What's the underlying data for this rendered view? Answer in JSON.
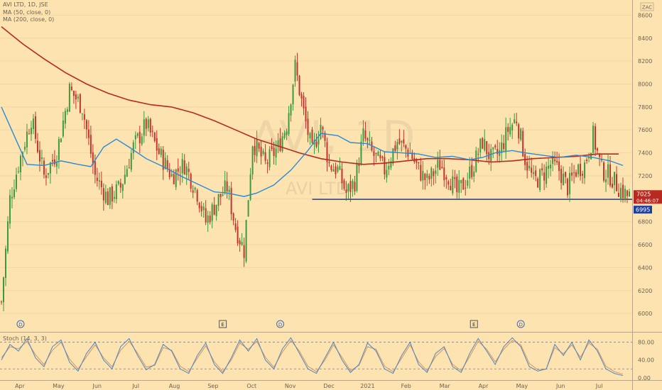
{
  "legend": {
    "symbol_line": "AVI LTD, 1D, JSE",
    "ma50_line": "MA (50, close, 0)",
    "ma200_line": "MA (200, close, 0)"
  },
  "watermark": {
    "ticker": "AVI, 1D",
    "name": "AVI LTD"
  },
  "currency_badge": "ZAC",
  "stoch_label": "Stoch (14, 3, 3)",
  "colors": {
    "background": "#fde3b0",
    "bull": "#3d9a3f",
    "bear": "#c3342e",
    "ma50": "#2a8ad4",
    "ma200": "#b8291f",
    "support": "#1e3f9c",
    "k_line": "#4a86c8",
    "d_line": "#d8935f"
  },
  "chart_data": [
    {
      "type": "candlestick",
      "title": "AVI LTD, 1D, JSE",
      "x_ticks": [
        "Apr",
        "May",
        "Jun",
        "Jul",
        "Aug",
        "Sep",
        "Oct",
        "Nov",
        "Dec",
        "2021",
        "Feb",
        "Mar",
        "Apr",
        "May",
        "Jun",
        "Jul"
      ],
      "y_ticks": [
        6000,
        6200,
        6400,
        6600,
        6800,
        7000,
        7200,
        7400,
        7600,
        7800,
        8000,
        8200,
        8400,
        8600
      ],
      "ylim": [
        5840,
        8720
      ],
      "series_path": [
        [
          0,
          6100
        ],
        [
          4,
          7000
        ],
        [
          8,
          7300
        ],
        [
          14,
          7700
        ],
        [
          20,
          7200
        ],
        [
          26,
          7400
        ],
        [
          32,
          7950
        ],
        [
          38,
          7800
        ],
        [
          44,
          7200
        ],
        [
          50,
          7000
        ],
        [
          56,
          7100
        ],
        [
          62,
          7450
        ],
        [
          68,
          7650
        ],
        [
          74,
          7400
        ],
        [
          80,
          7200
        ],
        [
          86,
          7300
        ],
        [
          92,
          7050
        ],
        [
          96,
          6800
        ],
        [
          102,
          7000
        ],
        [
          106,
          7100
        ],
        [
          110,
          6750
        ],
        [
          114,
          6550
        ],
        [
          118,
          7500
        ],
        [
          124,
          7300
        ],
        [
          130,
          7450
        ],
        [
          134,
          7650
        ],
        [
          138,
          8150
        ],
        [
          142,
          7750
        ],
        [
          146,
          7400
        ],
        [
          150,
          7650
        ],
        [
          154,
          7300
        ],
        [
          158,
          7250
        ],
        [
          162,
          7050
        ],
        [
          166,
          7150
        ],
        [
          170,
          7550
        ],
        [
          174,
          7400
        ],
        [
          180,
          7250
        ],
        [
          186,
          7500
        ],
        [
          192,
          7400
        ],
        [
          196,
          7250
        ],
        [
          200,
          7150
        ],
        [
          206,
          7300
        ],
        [
          210,
          7200
        ],
        [
          214,
          7050
        ],
        [
          218,
          7150
        ],
        [
          222,
          7300
        ],
        [
          226,
          7500
        ],
        [
          230,
          7350
        ],
        [
          234,
          7400
        ],
        [
          238,
          7600
        ],
        [
          242,
          7700
        ],
        [
          246,
          7350
        ],
        [
          250,
          7150
        ],
        [
          254,
          7200
        ],
        [
          258,
          7300
        ],
        [
          262,
          7250
        ],
        [
          266,
          7100
        ],
        [
          270,
          7250
        ],
        [
          274,
          7300
        ],
        [
          278,
          7550
        ],
        [
          282,
          7250
        ],
        [
          286,
          7200
        ],
        [
          290,
          7100
        ],
        [
          294,
          7025
        ]
      ],
      "ma50": [
        [
          0,
          7800
        ],
        [
          6,
          7550
        ],
        [
          12,
          7300
        ],
        [
          20,
          7290
        ],
        [
          28,
          7330
        ],
        [
          36,
          7300
        ],
        [
          42,
          7280
        ],
        [
          48,
          7450
        ],
        [
          54,
          7520
        ],
        [
          60,
          7450
        ],
        [
          68,
          7350
        ],
        [
          76,
          7280
        ],
        [
          84,
          7200
        ],
        [
          92,
          7130
        ],
        [
          100,
          7060
        ],
        [
          106,
          7050
        ],
        [
          114,
          7020
        ],
        [
          120,
          7050
        ],
        [
          128,
          7120
        ],
        [
          136,
          7250
        ],
        [
          144,
          7420
        ],
        [
          150,
          7570
        ],
        [
          158,
          7550
        ],
        [
          164,
          7490
        ],
        [
          172,
          7480
        ],
        [
          180,
          7410
        ],
        [
          188,
          7400
        ],
        [
          196,
          7390
        ],
        [
          204,
          7360
        ],
        [
          212,
          7370
        ],
        [
          220,
          7340
        ],
        [
          226,
          7360
        ],
        [
          232,
          7400
        ],
        [
          240,
          7420
        ],
        [
          246,
          7400
        ],
        [
          254,
          7380
        ],
        [
          262,
          7360
        ],
        [
          270,
          7380
        ],
        [
          278,
          7360
        ],
        [
          286,
          7330
        ],
        [
          292,
          7290
        ]
      ],
      "ma200": [
        [
          0,
          8500
        ],
        [
          10,
          8350
        ],
        [
          20,
          8220
        ],
        [
          30,
          8100
        ],
        [
          40,
          8000
        ],
        [
          50,
          7920
        ],
        [
          60,
          7860
        ],
        [
          70,
          7820
        ],
        [
          80,
          7800
        ],
        [
          90,
          7750
        ],
        [
          100,
          7680
        ],
        [
          110,
          7600
        ],
        [
          120,
          7520
        ],
        [
          130,
          7460
        ],
        [
          140,
          7400
        ],
        [
          150,
          7350
        ],
        [
          160,
          7320
        ],
        [
          170,
          7300
        ],
        [
          180,
          7310
        ],
        [
          190,
          7330
        ],
        [
          200,
          7350
        ],
        [
          210,
          7350
        ],
        [
          220,
          7340
        ],
        [
          230,
          7320
        ],
        [
          240,
          7330
        ],
        [
          250,
          7350
        ],
        [
          260,
          7360
        ],
        [
          270,
          7370
        ],
        [
          280,
          7390
        ],
        [
          290,
          7390
        ]
      ],
      "support_level": 6995,
      "price_labels": {
        "last": "7025",
        "countdown": "04:46:07",
        "support": "6995"
      },
      "events": [
        {
          "label": "D",
          "x_index": 9
        },
        {
          "label": "E",
          "x_index": 104
        },
        {
          "label": "D",
          "x_index": 131
        },
        {
          "label": "E",
          "x_index": 222
        },
        {
          "label": "D",
          "x_index": 244
        }
      ]
    },
    {
      "type": "line",
      "title": "Stoch (14, 3, 3)",
      "y_ticks": [
        0,
        40,
        80
      ],
      "y_tick_labels": [
        "0.00",
        "40.00",
        "80.00"
      ],
      "ylim": [
        -5,
        100
      ],
      "bands": [
        20,
        80
      ],
      "k_path": [
        [
          0,
          40
        ],
        [
          4,
          75
        ],
        [
          8,
          60
        ],
        [
          12,
          88
        ],
        [
          16,
          45
        ],
        [
          20,
          25
        ],
        [
          24,
          70
        ],
        [
          28,
          85
        ],
        [
          32,
          35
        ],
        [
          36,
          15
        ],
        [
          40,
          55
        ],
        [
          44,
          80
        ],
        [
          48,
          40
        ],
        [
          52,
          20
        ],
        [
          56,
          70
        ],
        [
          60,
          88
        ],
        [
          64,
          50
        ],
        [
          68,
          18
        ],
        [
          72,
          30
        ],
        [
          76,
          75
        ],
        [
          80,
          60
        ],
        [
          84,
          20
        ],
        [
          88,
          10
        ],
        [
          92,
          50
        ],
        [
          96,
          78
        ],
        [
          100,
          30
        ],
        [
          104,
          10
        ],
        [
          108,
          45
        ],
        [
          112,
          85
        ],
        [
          116,
          60
        ],
        [
          120,
          88
        ],
        [
          124,
          40
        ],
        [
          128,
          20
        ],
        [
          132,
          65
        ],
        [
          136,
          90
        ],
        [
          140,
          55
        ],
        [
          144,
          20
        ],
        [
          148,
          10
        ],
        [
          152,
          45
        ],
        [
          156,
          80
        ],
        [
          160,
          40
        ],
        [
          164,
          12
        ],
        [
          168,
          30
        ],
        [
          172,
          78
        ],
        [
          176,
          60
        ],
        [
          180,
          20
        ],
        [
          184,
          10
        ],
        [
          188,
          50
        ],
        [
          192,
          80
        ],
        [
          196,
          30
        ],
        [
          200,
          12
        ],
        [
          204,
          55
        ],
        [
          208,
          70
        ],
        [
          212,
          25
        ],
        [
          216,
          12
        ],
        [
          220,
          55
        ],
        [
          224,
          88
        ],
        [
          228,
          60
        ],
        [
          232,
          30
        ],
        [
          236,
          70
        ],
        [
          240,
          90
        ],
        [
          244,
          70
        ],
        [
          248,
          25
        ],
        [
          252,
          15
        ],
        [
          256,
          20
        ],
        [
          260,
          75
        ],
        [
          264,
          50
        ],
        [
          268,
          80
        ],
        [
          272,
          40
        ],
        [
          276,
          85
        ],
        [
          280,
          60
        ],
        [
          284,
          20
        ],
        [
          288,
          10
        ],
        [
          292,
          5
        ]
      ],
      "d_path": [
        [
          0,
          45
        ],
        [
          4,
          70
        ],
        [
          8,
          65
        ],
        [
          12,
          82
        ],
        [
          16,
          52
        ],
        [
          20,
          30
        ],
        [
          24,
          62
        ],
        [
          28,
          80
        ],
        [
          32,
          42
        ],
        [
          36,
          20
        ],
        [
          40,
          48
        ],
        [
          44,
          74
        ],
        [
          48,
          45
        ],
        [
          52,
          25
        ],
        [
          56,
          62
        ],
        [
          60,
          82
        ],
        [
          64,
          55
        ],
        [
          68,
          24
        ],
        [
          72,
          28
        ],
        [
          76,
          68
        ],
        [
          80,
          62
        ],
        [
          84,
          26
        ],
        [
          88,
          14
        ],
        [
          92,
          44
        ],
        [
          96,
          72
        ],
        [
          100,
          36
        ],
        [
          104,
          14
        ],
        [
          108,
          40
        ],
        [
          112,
          78
        ],
        [
          116,
          64
        ],
        [
          120,
          82
        ],
        [
          124,
          46
        ],
        [
          128,
          24
        ],
        [
          132,
          58
        ],
        [
          136,
          84
        ],
        [
          140,
          60
        ],
        [
          144,
          26
        ],
        [
          148,
          14
        ],
        [
          152,
          40
        ],
        [
          156,
          74
        ],
        [
          160,
          46
        ],
        [
          164,
          16
        ],
        [
          168,
          28
        ],
        [
          172,
          70
        ],
        [
          176,
          64
        ],
        [
          180,
          26
        ],
        [
          184,
          14
        ],
        [
          188,
          44
        ],
        [
          192,
          74
        ],
        [
          196,
          36
        ],
        [
          200,
          16
        ],
        [
          204,
          48
        ],
        [
          208,
          66
        ],
        [
          212,
          30
        ],
        [
          216,
          16
        ],
        [
          220,
          48
        ],
        [
          224,
          82
        ],
        [
          228,
          64
        ],
        [
          232,
          36
        ],
        [
          236,
          64
        ],
        [
          240,
          84
        ],
        [
          244,
          74
        ],
        [
          248,
          32
        ],
        [
          252,
          18
        ],
        [
          256,
          20
        ],
        [
          260,
          68
        ],
        [
          264,
          54
        ],
        [
          268,
          74
        ],
        [
          272,
          46
        ],
        [
          276,
          78
        ],
        [
          280,
          64
        ],
        [
          284,
          26
        ],
        [
          288,
          14
        ],
        [
          292,
          8
        ]
      ]
    }
  ]
}
